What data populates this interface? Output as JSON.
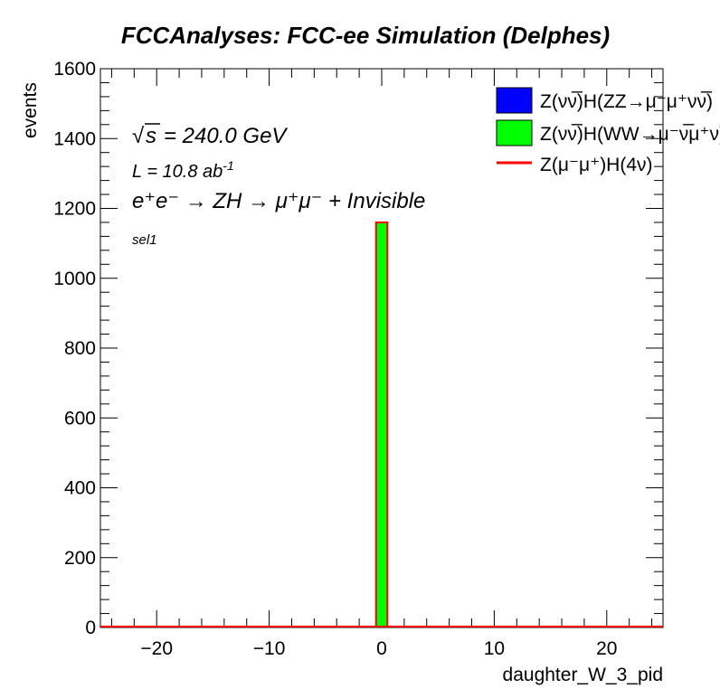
{
  "chart_data": {
    "type": "bar",
    "title": "FCCAnalyses: FCC-ee Simulation (Delphes)",
    "xlabel": "daughter_W_3_pid",
    "ylabel": "events",
    "xlim": [
      -25,
      25
    ],
    "ylim": [
      0,
      1600
    ],
    "x_ticks": [
      -20,
      -10,
      0,
      10,
      20
    ],
    "x_tick_labels": [
      "−20",
      "−10",
      "0",
      "10",
      "20"
    ],
    "y_ticks": [
      0,
      200,
      400,
      600,
      800,
      1000,
      1200,
      1400,
      1600
    ],
    "y_tick_labels": [
      "0",
      "200",
      "400",
      "600",
      "800",
      "1000",
      "1200",
      "1400",
      "1600"
    ],
    "annotations": {
      "sqrt_s": "= 240.0 GeV",
      "lumi": "L = 10.8 ab",
      "lumi_exp": "-1",
      "process": "e⁺e⁻ → ZH → μ⁺μ⁻ + Invisible",
      "selection": "sel1"
    },
    "legend_position": "top-right",
    "series": [
      {
        "name": "Z(νν̅)H(ZZ→μ⁻μ⁺νν̅)",
        "style": "filled",
        "fill": "#0000ff",
        "bins": []
      },
      {
        "name": "Z(νν̅)H(WW→μ⁻ν̅μ⁺ν)",
        "style": "filled",
        "fill": "#00ff00",
        "bins": [
          {
            "x0": -0.5,
            "x1": 0.5,
            "value": 1160
          }
        ]
      },
      {
        "name": "Z(μ⁻μ⁺)H(4ν)",
        "style": "line",
        "stroke": "#ff0000",
        "bins": []
      }
    ]
  }
}
